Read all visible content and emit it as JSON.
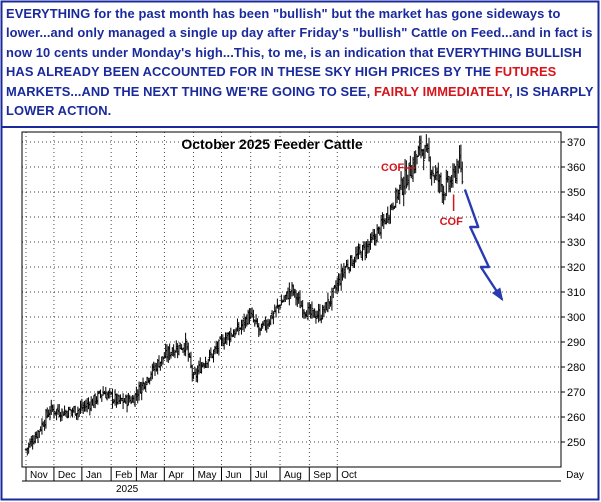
{
  "caption": {
    "p1": "EVERYTHING for the past month has been \"bullish\" but the market has gone sideways to lower...and only managed a single up day after Friday's \"bullish\" Cattle on Feed...and in fact is now 10 cents under Monday's high...This, to me, is an indication that EVERYTHING BULLISH HAS ALREADY BEEN ACCOUNTED FOR IN THESE SKY HIGH PRICES BY THE ",
    "futures": "FUTURES",
    "p2": " MARKETS...AND THE NEXT THING WE'RE GOING TO SEE, ",
    "fairly": "FAIRLY IMMEDIATELY",
    "p3": ", IS SHARPLY LOWER ACTION."
  },
  "colors": {
    "text_blue": "#1a2a9c",
    "text_red": "#d6141c",
    "arrow": "#2a3ab0",
    "bars": "#000000",
    "border": "#1a2a9c"
  },
  "chart_data": {
    "type": "bar",
    "subtype": "ohlc",
    "title": "October 2025 Feeder Cattle",
    "ylim": [
      240,
      374
    ],
    "yticks": [
      250,
      260,
      270,
      280,
      290,
      300,
      310,
      320,
      330,
      340,
      350,
      360,
      370
    ],
    "y_axis_label": "Day",
    "x_months": [
      "Nov",
      "Dec",
      "Jan",
      "Feb",
      "Mar",
      "Apr",
      "May",
      "Jun",
      "Jul",
      "Aug",
      "Sep",
      "Oct"
    ],
    "x_year_label": "2025",
    "price_path": [
      [
        0,
        247
      ],
      [
        10,
        255
      ],
      [
        18,
        263
      ],
      [
        28,
        262
      ],
      [
        40,
        263
      ],
      [
        50,
        266
      ],
      [
        58,
        270
      ],
      [
        70,
        266
      ],
      [
        80,
        267
      ],
      [
        90,
        275
      ],
      [
        100,
        282
      ],
      [
        110,
        287
      ],
      [
        120,
        289
      ],
      [
        126,
        275
      ],
      [
        133,
        282
      ],
      [
        140,
        285
      ],
      [
        150,
        292
      ],
      [
        160,
        295
      ],
      [
        168,
        301
      ],
      [
        176,
        294
      ],
      [
        184,
        300
      ],
      [
        192,
        306
      ],
      [
        200,
        311
      ],
      [
        206,
        305
      ],
      [
        214,
        301
      ],
      [
        222,
        301
      ],
      [
        230,
        308
      ],
      [
        240,
        320
      ],
      [
        250,
        325
      ],
      [
        260,
        330
      ],
      [
        270,
        339
      ],
      [
        278,
        348
      ],
      [
        286,
        356
      ],
      [
        292,
        362
      ],
      [
        297,
        368
      ],
      [
        302,
        364
      ],
      [
        306,
        358
      ],
      [
        310,
        355
      ],
      [
        314,
        351
      ],
      [
        318,
        353
      ],
      [
        322,
        356
      ],
      [
        325,
        363
      ],
      [
        328,
        355
      ]
    ],
    "annotations": [
      {
        "label": "COF",
        "x": 288,
        "y": 360
      },
      {
        "label": "COF",
        "x": 320,
        "y": 344
      }
    ],
    "projection_arrow": [
      [
        330,
        351
      ],
      [
        340,
        336
      ],
      [
        334,
        336
      ],
      [
        348,
        320
      ],
      [
        342,
        320
      ],
      [
        358,
        307
      ]
    ]
  }
}
